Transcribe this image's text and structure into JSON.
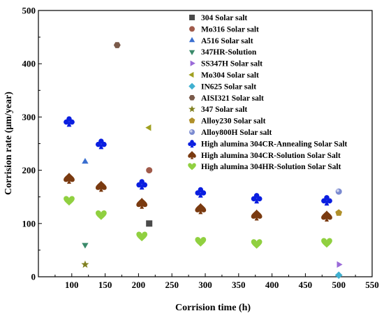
{
  "chart_data": {
    "type": "scatter",
    "xlabel": "Corrision time (h)",
    "ylabel": "Corrision rate (μm/year)",
    "xlim": [
      50,
      550
    ],
    "ylim": [
      0,
      500
    ],
    "x_ticks": [
      "100",
      "150",
      "200",
      "250",
      "300",
      "350",
      "400",
      "450",
      "500",
      "550"
    ],
    "y_ticks": [
      "0",
      "100",
      "200",
      "300",
      "400",
      "500"
    ],
    "legend_position": "top-right",
    "series": [
      {
        "name": "304 Solar salt",
        "marker": "square",
        "color": "#4a4a4a",
        "points": [
          [
            216,
            100
          ]
        ]
      },
      {
        "name": "Mo316 Solar salt",
        "marker": "circle",
        "color": "#a05a4a",
        "points": [
          [
            216,
            200
          ]
        ]
      },
      {
        "name": "A516 Solar salt",
        "marker": "triangle-up",
        "color": "#3a6fd0",
        "points": [
          [
            120,
            216
          ]
        ]
      },
      {
        "name": "347HR-Solution",
        "marker": "triangle-down",
        "color": "#3a8a6a",
        "points": [
          [
            120,
            60
          ]
        ]
      },
      {
        "name": "SS347H Solar salt",
        "marker": "triangle-right",
        "color": "#9a6ad8",
        "points": [
          [
            500,
            23
          ]
        ]
      },
      {
        "name": "Mo304 Solar salt",
        "marker": "triangle-left",
        "color": "#a0a020",
        "points": [
          [
            216,
            280
          ]
        ]
      },
      {
        "name": "IN625 Solar salt",
        "marker": "diamond",
        "color": "#40b0d0",
        "points": [
          [
            500,
            3
          ]
        ]
      },
      {
        "name": "AISI321 Solar salt",
        "marker": "hexagon",
        "color": "#7a5a4a",
        "points": [
          [
            168,
            435
          ]
        ]
      },
      {
        "name": "347 Solar salt",
        "marker": "star",
        "color": "#808020",
        "points": [
          [
            120,
            23
          ]
        ]
      },
      {
        "name": "Alloy230 Solar salt",
        "marker": "pentagon",
        "color": "#b0902a",
        "points": [
          [
            500,
            120
          ]
        ]
      },
      {
        "name": "Alloy800H Solar salt",
        "marker": "sphere",
        "color": "#7a8ad0",
        "points": [
          [
            500,
            160
          ]
        ]
      },
      {
        "name": "High alumina 304CR-Annealing Solar Salt",
        "marker": "club",
        "color": "#0a1ee0",
        "points": [
          [
            96,
            292
          ],
          [
            144,
            250
          ],
          [
            205,
            174
          ],
          [
            293,
            159
          ],
          [
            377,
            148
          ],
          [
            482,
            144
          ]
        ]
      },
      {
        "name": "High alumina 304CR-Solution Solar Salt",
        "marker": "spade",
        "color": "#7a3a10",
        "points": [
          [
            96,
            185
          ],
          [
            144,
            170
          ],
          [
            205,
            138
          ],
          [
            293,
            128
          ],
          [
            377,
            116
          ],
          [
            482,
            114
          ]
        ]
      },
      {
        "name": "High alumina 304HR-Solution Solar Salt",
        "marker": "heart",
        "color": "#90d040",
        "points": [
          [
            96,
            143
          ],
          [
            144,
            116
          ],
          [
            205,
            76
          ],
          [
            293,
            66
          ],
          [
            377,
            62
          ],
          [
            482,
            64
          ]
        ]
      }
    ]
  }
}
